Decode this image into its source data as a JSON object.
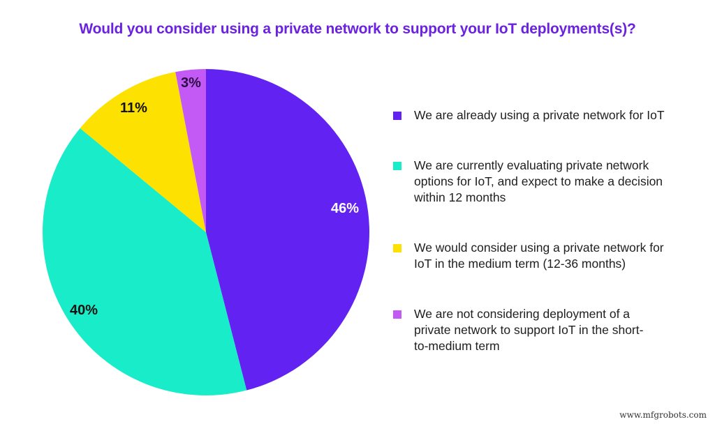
{
  "title": "Would you consider using a private network to support your IoT deployments(s)?",
  "chart_data": {
    "type": "pie",
    "title": "Would you consider using a private network to support your IoT deployments(s)?",
    "categories": [
      "We are already using a private network for IoT",
      "We are currently evaluating private network options for IoT, and expect to make a decision within 12 months",
      "We would consider using a private network for IoT in the medium term (12-36 months)",
      "We are not considering deployment of a private network to support IoT in the short-to-medium term"
    ],
    "values": [
      46,
      40,
      11,
      3
    ],
    "labels": [
      "46%",
      "40%",
      "11%",
      "3%"
    ],
    "colors": [
      "#6222f2",
      "#18ecc8",
      "#fde100",
      "#c45af5"
    ],
    "legend_position": "right",
    "start_angle": "12 o'clock, clockwise"
  },
  "legend": [
    {
      "label": "We are already using a private network for IoT",
      "color": "#6222f2"
    },
    {
      "label": "We are currently evaluating private network options for IoT, and expect to make a decision within 12 months",
      "color": "#18ecc8"
    },
    {
      "label": "We would consider using a private network for IoT in the medium term (12-36 months)",
      "color": "#fde100"
    },
    {
      "label": "We are not considering deployment of a private network to support IoT in the short-to-medium term",
      "color": "#c45af5"
    }
  ],
  "slice_labels": {
    "s0": "46%",
    "s1": "40%",
    "s2": "11%",
    "s3": "3%"
  },
  "watermark": "www.mfgrobots.com"
}
